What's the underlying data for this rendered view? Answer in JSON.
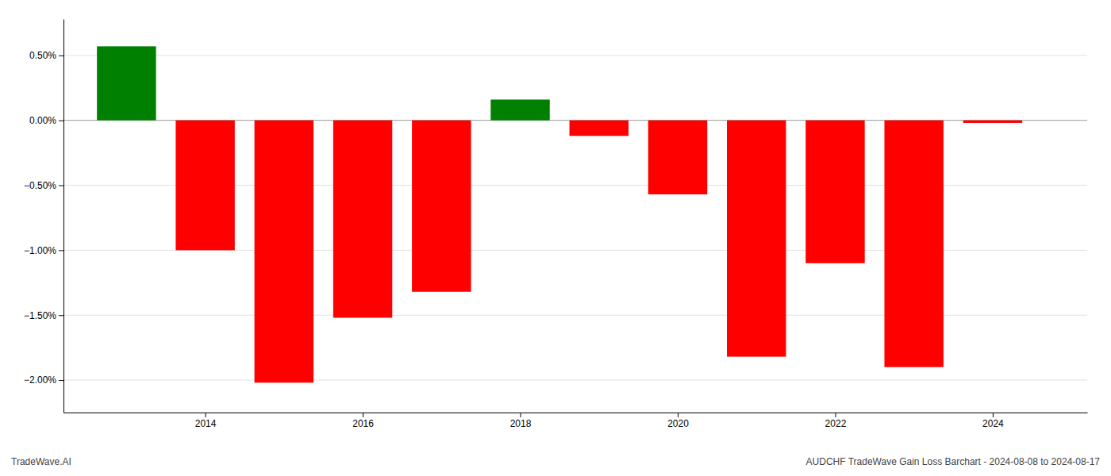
{
  "chart_data": {
    "type": "bar",
    "x": [
      2013,
      2014,
      2015,
      2016,
      2017,
      2018,
      2019,
      2020,
      2021,
      2022,
      2023,
      2024
    ],
    "values": [
      0.57,
      -1.0,
      -2.02,
      -1.52,
      -1.32,
      0.16,
      -0.12,
      -0.57,
      -1.82,
      -1.1,
      -1.9,
      -0.02
    ],
    "colors": [
      "#008000",
      "#ff0000",
      "#ff0000",
      "#ff0000",
      "#ff0000",
      "#008000",
      "#ff0000",
      "#ff0000",
      "#ff0000",
      "#ff0000",
      "#ff0000",
      "#ff0000"
    ],
    "xlim": [
      2012.2,
      2025.2
    ],
    "xticks": [
      2014,
      2016,
      2018,
      2020,
      2022,
      2024
    ],
    "ylim": [
      -2.25,
      0.78
    ],
    "yticks": [
      {
        "value": 0.5,
        "label": "0.50%"
      },
      {
        "value": 0.0,
        "label": "0.00%"
      },
      {
        "value": -0.5,
        "label": "−0.50%"
      },
      {
        "value": -1.0,
        "label": "−1.00%"
      },
      {
        "value": -1.5,
        "label": "−1.50%"
      },
      {
        "value": -2.0,
        "label": "−2.00%"
      }
    ],
    "grid": true,
    "annotations": [
      "TradeWave.AI",
      "AUDCHF TradeWave Gain Loss Barchart - 2024-08-08 to 2024-08-17"
    ]
  }
}
